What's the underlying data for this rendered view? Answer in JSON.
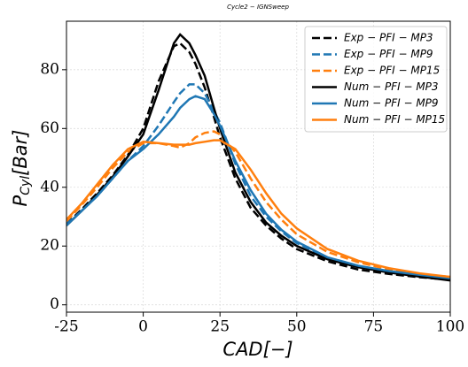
{
  "chart_data": {
    "type": "line",
    "title": "Cycle2 − IGNSweep",
    "x_label": "CAD[−]",
    "y_label": {
      "base": "P",
      "sub": "Cyl",
      "rest": "[Bar]"
    },
    "x": [
      -25,
      -20,
      -15,
      -10,
      -5,
      0,
      5,
      10,
      12,
      15,
      17,
      20,
      23,
      25,
      30,
      35,
      40,
      45,
      50,
      60,
      70,
      80,
      90,
      100
    ],
    "series": [
      {
        "name": "Exp − PFI − MP3",
        "color": "#000000",
        "linestyle": "dashed",
        "values": [
          27.5,
          32.5,
          38,
          44,
          51,
          60,
          76,
          88,
          89,
          86,
          82,
          74,
          64,
          57,
          43,
          33,
          27,
          22.5,
          19,
          14.8,
          12,
          10.5,
          9.4,
          8.5
        ]
      },
      {
        "name": "Exp − PFI − MP9",
        "color": "#1f77b4",
        "linestyle": "dashed",
        "values": [
          27.5,
          32,
          37,
          43,
          49,
          54,
          61,
          69,
          72,
          75,
          75,
          72,
          66,
          62,
          48,
          37,
          30,
          25,
          21,
          16,
          13,
          11.3,
          10,
          9
        ]
      },
      {
        "name": "Exp − PFI − MP15",
        "color": "#ff7f0e",
        "linestyle": "dashed",
        "values": [
          28.5,
          34,
          40,
          46.5,
          52,
          55,
          55,
          54,
          53.5,
          55,
          57,
          58.5,
          59,
          58,
          52,
          43,
          35,
          29,
          24,
          18,
          14.5,
          12,
          10.5,
          9.5
        ]
      },
      {
        "name": "Num − PFI − MP3",
        "color": "#000000",
        "linestyle": "solid",
        "values": [
          27,
          32,
          37.5,
          43.5,
          50.5,
          58,
          73,
          89,
          92,
          89,
          85,
          78,
          67,
          60,
          45,
          35,
          28,
          23.5,
          20,
          15.5,
          12.8,
          11,
          9.6,
          8.3
        ]
      },
      {
        "name": "Num − PFI − MP9",
        "color": "#1f77b4",
        "linestyle": "solid",
        "values": [
          27,
          32,
          37,
          43,
          49,
          53,
          58,
          64,
          67,
          70,
          71,
          70,
          65,
          61,
          49,
          39,
          31,
          25.5,
          21.5,
          16.2,
          13.3,
          11.5,
          10.2,
          9
        ]
      },
      {
        "name": "Num − PFI − MP15",
        "color": "#ff7f0e",
        "linestyle": "solid",
        "values": [
          29,
          34.5,
          41,
          47.5,
          53,
          55.5,
          55,
          54.5,
          54.5,
          54.5,
          55,
          55.5,
          56,
          56,
          53,
          46,
          38,
          31,
          26,
          19,
          15,
          12.5,
          10.7,
          9.5
        ]
      }
    ],
    "xlim": [
      -25,
      100
    ],
    "ylim": [
      -2.5,
      96.5
    ],
    "xticks": [
      -25,
      0,
      25,
      50,
      75,
      100
    ],
    "yticks": [
      0,
      20,
      40,
      60,
      80
    ],
    "grid": true,
    "legend": "upper right"
  }
}
